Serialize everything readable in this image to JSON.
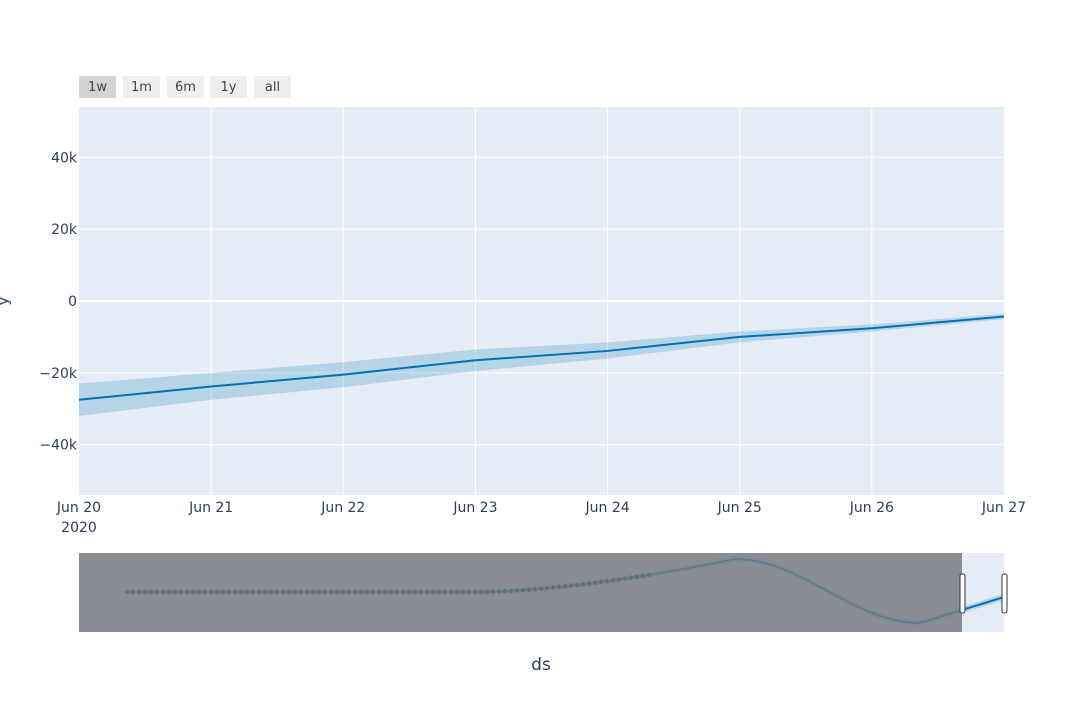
{
  "range_selector": {
    "buttons": [
      "1w",
      "1m",
      "6m",
      "1y",
      "all"
    ],
    "active": "1w"
  },
  "colors": {
    "plot_bg": "#E5ECF6",
    "line": "#0072B2",
    "band": "rgba(0,114,178,0.2)",
    "text": "#2a3f5f",
    "slider_mask": "rgba(120,124,130,0.85)"
  },
  "chart_data": {
    "type": "line",
    "ylabel": "y",
    "xlabel": "ds",
    "ylim": [
      -54000,
      54000
    ],
    "y_ticks": [
      -40000,
      -20000,
      0,
      20000,
      40000
    ],
    "y_tick_labels": [
      "−40k",
      "−20k",
      "0",
      "20k",
      "40k"
    ],
    "x_tick_labels": [
      "Jun 20",
      "Jun 21",
      "Jun 22",
      "Jun 23",
      "Jun 24",
      "Jun 25",
      "Jun 26",
      "Jun 27"
    ],
    "x_year_label": "2020",
    "grid": true,
    "series": [
      {
        "x": [
          "Jun 20",
          "Jun 21",
          "Jun 22",
          "Jun 23",
          "Jun 24",
          "Jun 25",
          "Jun 26",
          "Jun 27"
        ],
        "yhat": [
          -27500,
          -23800,
          -20500,
          -16500,
          -13900,
          -10000,
          -7600,
          -4300
        ],
        "yhat_upper": [
          -23000,
          -20000,
          -17000,
          -13500,
          -11500,
          -8500,
          -6500,
          -3500
        ],
        "yhat_lower": [
          -32000,
          -27500,
          -24000,
          -19500,
          -16000,
          -11500,
          -8500,
          -5000
        ]
      }
    ],
    "rangeslider": {
      "selected_window": [
        "Jun 20",
        "Jun 27"
      ]
    }
  }
}
